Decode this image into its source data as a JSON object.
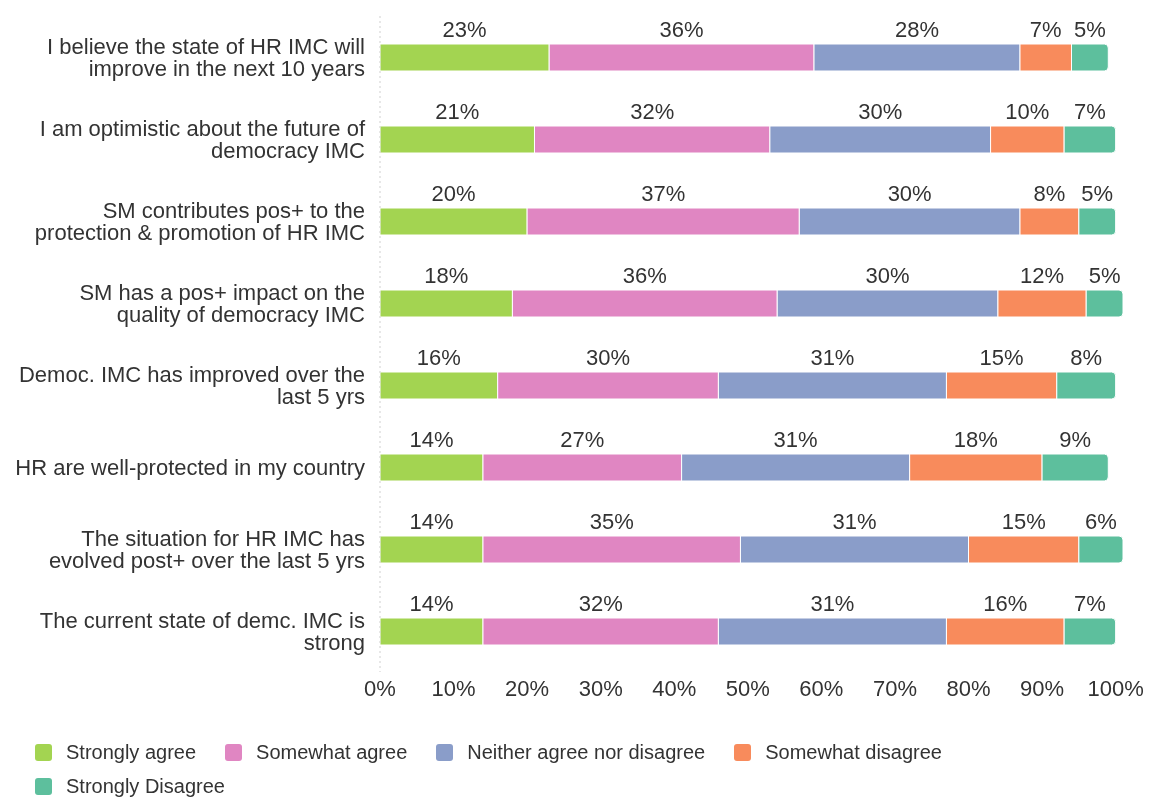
{
  "chart_data": {
    "type": "bar",
    "orientation": "horizontal",
    "stacked": true,
    "categories": [
      "I believe the state of HR IMC will improve in the next 10 years",
      "I am optimistic about the future of democracy IMC",
      "SM contributes pos+ to the protection & promotion of HR IMC",
      "SM has a pos+ impact on the quality of democracy IMC",
      "Democ. IMC has improved over the last 5 yrs",
      "HR are well-protected in my country",
      "The situation for HR IMC has evolved post+ over the last 5 yrs",
      "The current state of demc. IMC is strong"
    ],
    "series": [
      {
        "name": "Strongly agree",
        "color": "#a3d451",
        "values": [
          23,
          21,
          20,
          18,
          16,
          14,
          14,
          14
        ],
        "value_labels": [
          "23%",
          "21%",
          "20%",
          "18%",
          "16%",
          "14%",
          "14%",
          "14%"
        ]
      },
      {
        "name": "Somewhat agree",
        "color": "#e086c2",
        "values": [
          36,
          32,
          37,
          36,
          30,
          27,
          35,
          32
        ],
        "value_labels": [
          "36%",
          "32%",
          "37%",
          "36%",
          "30%",
          "27%",
          "35%",
          "32%"
        ]
      },
      {
        "name": "Neither agree nor disagree",
        "color": "#8a9dc9",
        "values": [
          28,
          30,
          30,
          30,
          31,
          31,
          31,
          31
        ],
        "value_labels": [
          "28%",
          "30%",
          "30%",
          "30%",
          "31%",
          "31%",
          "31%",
          "31%"
        ]
      },
      {
        "name": "Somewhat disagree",
        "color": "#f88b5c",
        "values": [
          7,
          10,
          8,
          12,
          15,
          18,
          15,
          16
        ],
        "value_labels": [
          "7%",
          "10%",
          "8%",
          "12%",
          "15%",
          "18%",
          "15%",
          "16%"
        ]
      },
      {
        "name": "Strongly Disagree",
        "color": "#5dbf9d",
        "values": [
          5,
          7,
          5,
          5,
          8,
          9,
          6,
          7
        ],
        "value_labels": [
          "5%",
          "7%",
          "5%",
          "5%",
          "8%",
          "9%",
          "6%",
          "7%"
        ]
      }
    ],
    "xlim": [
      0,
      101
    ],
    "xticks": [
      {
        "value": 0,
        "label": "0%"
      },
      {
        "value": 10,
        "label": "10%"
      },
      {
        "value": 20,
        "label": "20%"
      },
      {
        "value": 30,
        "label": "30%"
      },
      {
        "value": 40,
        "label": "40%"
      },
      {
        "value": 50,
        "label": "50%"
      },
      {
        "value": 60,
        "label": "60%"
      },
      {
        "value": 70,
        "label": "70%"
      },
      {
        "value": 80,
        "label": "80%"
      },
      {
        "value": 90,
        "label": "90%"
      },
      {
        "value": 100,
        "label": "100%"
      }
    ],
    "legend": "bottom left"
  }
}
